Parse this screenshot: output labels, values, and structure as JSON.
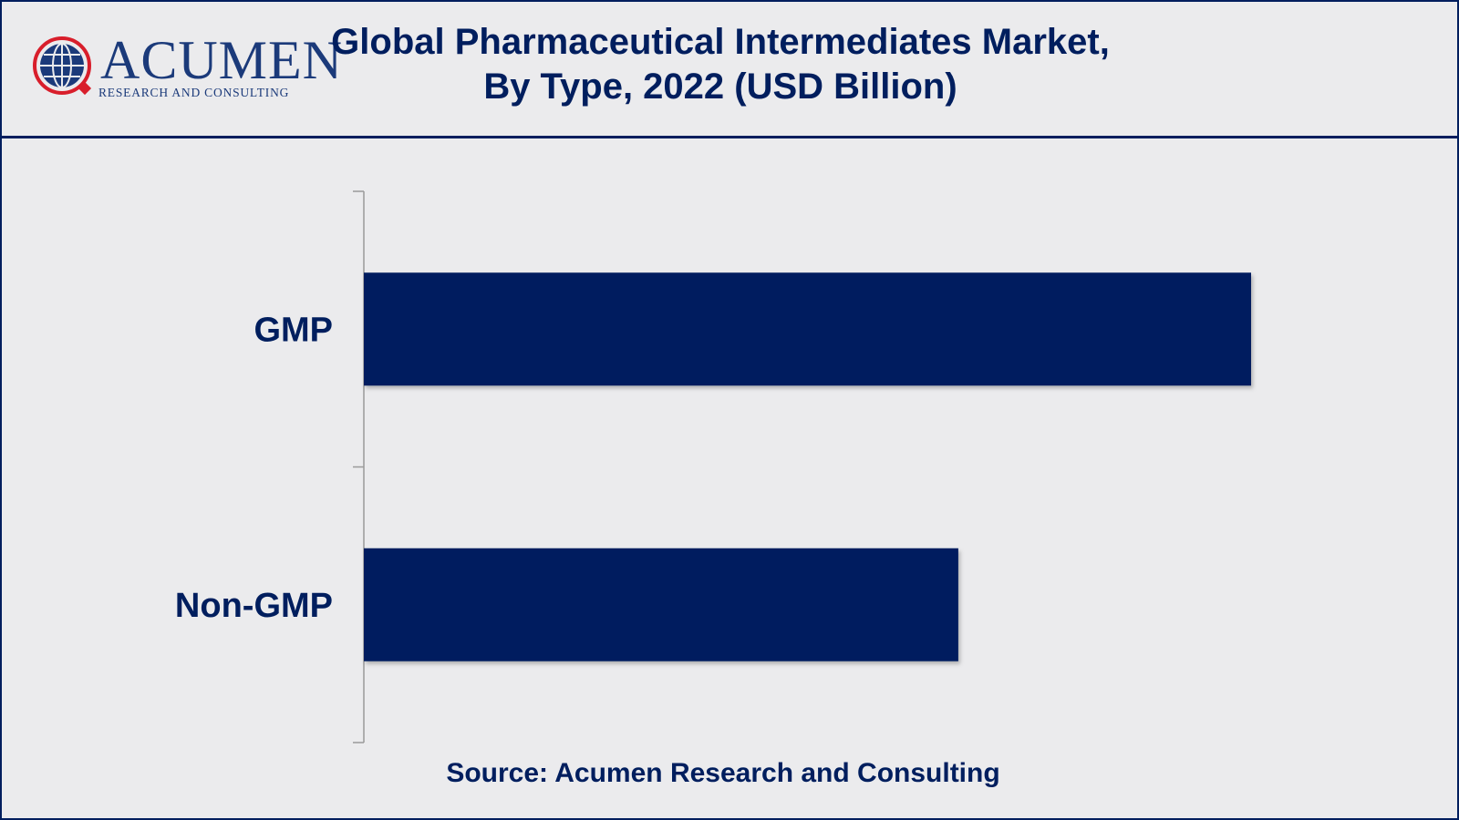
{
  "header": {
    "logo_word": "Acumen",
    "logo_subtitle": "RESEARCH AND CONSULTING",
    "title_line1": "Global Pharmaceutical Intermediates Market,",
    "title_line2": "By Type, 2022 (USD Billion)"
  },
  "footer": {
    "source": "Source: Acumen Research and Consulting"
  },
  "colors": {
    "bar": "#001e5e",
    "text": "#001e5e",
    "background": "#ebebed",
    "logo_red": "#d81e2b",
    "logo_blue": "#1b3a7a"
  },
  "chart_data": {
    "type": "bar",
    "orientation": "horizontal",
    "categories": [
      "GMP",
      "Non-GMP"
    ],
    "values": [
      100,
      67
    ],
    "xlim": [
      0,
      100
    ],
    "grid": false,
    "legend": "none",
    "data_labels": false
  }
}
